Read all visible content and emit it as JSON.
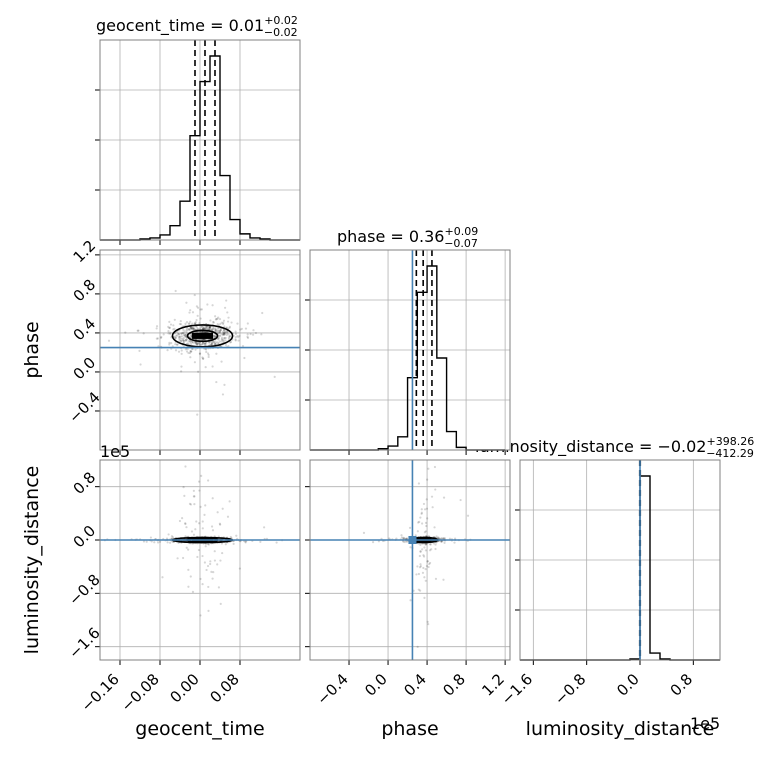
{
  "chart_data": {
    "type": "corner",
    "parameters": [
      "geocent_time",
      "phase",
      "luminosity_distance"
    ],
    "titles": [
      {
        "param": "geocent_time",
        "prefix": "geocent_time = ",
        "value": "0.01",
        "plus": "+0.02",
        "minus": "−0.02"
      },
      {
        "param": "phase",
        "prefix": "phase = ",
        "value": "0.36",
        "plus": "+0.09",
        "minus": "−0.07"
      },
      {
        "param": "luminosity_distance",
        "prefix": "luminosity_distance = ",
        "value": "−0.02",
        "plus": "+398.26",
        "minus": "−412.29"
      }
    ],
    "axes": {
      "geocent_time": {
        "range": [
          -0.2,
          0.2
        ],
        "ticks": [
          -0.16,
          -0.08,
          0.0,
          0.08
        ],
        "tick_labels": [
          "−0.16",
          "−0.08",
          "0.00",
          "0.08"
        ],
        "label": "geocent_time"
      },
      "phase": {
        "range": [
          -0.8,
          1.25
        ],
        "ticks": [
          -0.4,
          0.0,
          0.4,
          0.8,
          1.2
        ],
        "tick_labels": [
          "−0.4",
          "0.0",
          "0.4",
          "0.8",
          "1.2"
        ],
        "label": "phase"
      },
      "luminosity_distance": {
        "range": [
          -1.8,
          1.2
        ],
        "ticks": [
          -1.6,
          -0.8,
          0.0,
          0.8
        ],
        "tick_labels": [
          "−1.6",
          "−0.8",
          "0.0",
          "0.8"
        ],
        "label": "luminosity_distance",
        "offset_text": "1e5"
      }
    },
    "truths": {
      "geocent_time": null,
      "phase": 0.25,
      "luminosity_distance": 0.0
    },
    "quantiles": {
      "geocent_time": [
        -0.01,
        0.01,
        0.03
      ],
      "phase": [
        0.29,
        0.36,
        0.45
      ],
      "luminosity_distance": [
        -0.0041,
        0.0,
        0.004
      ]
    },
    "histograms": {
      "geocent_time": {
        "edges": [
          -0.2,
          -0.18,
          -0.16,
          -0.14,
          -0.12,
          -0.1,
          -0.08,
          -0.06,
          -0.04,
          -0.02,
          0.0,
          0.02,
          0.04,
          0.06,
          0.08,
          0.1,
          0.12,
          0.14,
          0.16,
          0.18,
          0.2
        ],
        "counts": [
          0,
          0,
          0,
          0,
          1,
          2,
          5,
          14,
          38,
          102,
          155,
          180,
          63,
          20,
          6,
          2,
          1,
          0,
          0,
          0
        ]
      },
      "phase": {
        "edges": [
          -0.8,
          -0.7,
          -0.6,
          -0.5,
          -0.4,
          -0.3,
          -0.2,
          -0.1,
          0.0,
          0.1,
          0.2,
          0.3,
          0.4,
          0.5,
          0.6,
          0.7,
          0.8,
          0.9,
          1.0,
          1.1,
          1.2
        ],
        "counts": [
          0,
          0,
          0,
          0,
          0,
          0,
          0,
          1,
          3,
          10,
          55,
          120,
          140,
          70,
          14,
          2,
          0,
          0,
          0,
          0
        ]
      },
      "luminosity_distance": {
        "edges": [
          -1.8,
          -1.65,
          -1.5,
          -1.35,
          -1.2,
          -1.05,
          -0.9,
          -0.75,
          -0.6,
          -0.45,
          -0.3,
          -0.15,
          0.0,
          0.15,
          0.3,
          0.45,
          0.6,
          0.75,
          0.9,
          1.05,
          1.2
        ],
        "counts": [
          0,
          0,
          0,
          0,
          0,
          0,
          0,
          0,
          0,
          0,
          0,
          1,
          186,
          7,
          1,
          0,
          0,
          0,
          0,
          0
        ]
      }
    },
    "grid": true
  }
}
